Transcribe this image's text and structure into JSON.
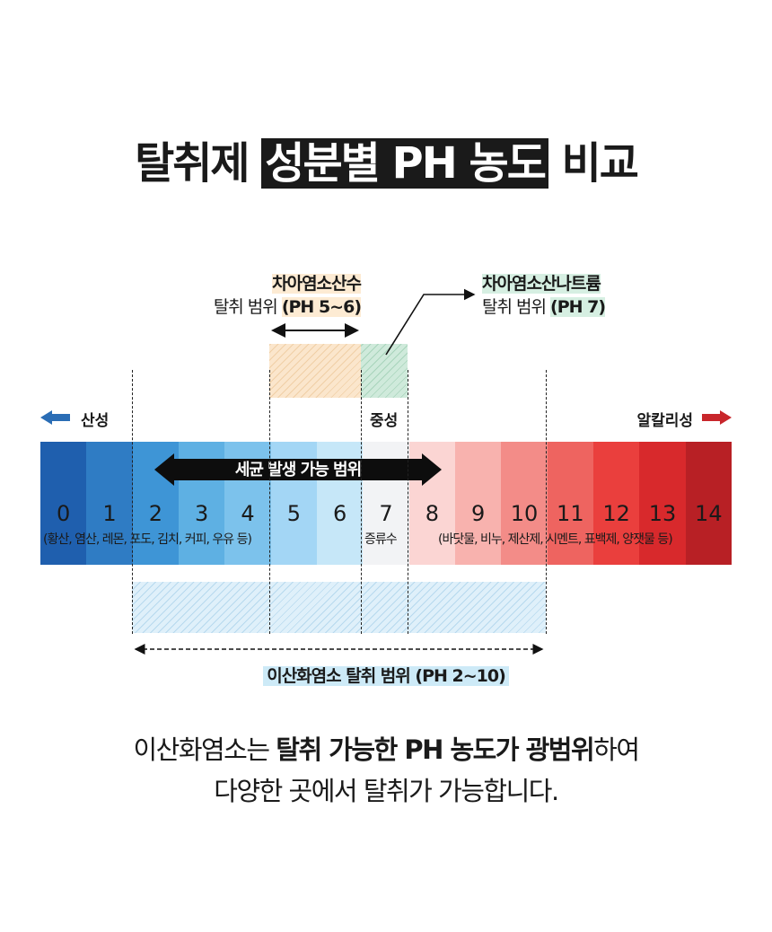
{
  "title": {
    "part1": "탈취제",
    "highlight": "성분별 PH 농도",
    "part2": "비교"
  },
  "hypochlorous": {
    "name": "차아염소산수",
    "range_prefix": "탈취 범위",
    "range": "(PH 5~6)",
    "ph_min": 5,
    "ph_max": 6,
    "color": "#fdebd3"
  },
  "sodium_hypochlorite": {
    "name": "차아염소산나트륨",
    "range_prefix": "탈취 범위",
    "range": "(PH 7)",
    "ph": 7,
    "color": "#d6efe2"
  },
  "scale": {
    "acid_label": "산성",
    "neutral_label": "중성",
    "alkali_label": "알칼리성",
    "acid_arrow_color": "#2a6db5",
    "alkali_arrow_color": "#c8262b",
    "numbers": [
      "0",
      "1",
      "2",
      "3",
      "4",
      "5",
      "6",
      "7",
      "8",
      "9",
      "10",
      "11",
      "12",
      "13",
      "14"
    ],
    "colors": [
      "#1f5fae",
      "#2f7cc4",
      "#3e95d6",
      "#5eb0e3",
      "#7cc2ec",
      "#a3d6f5",
      "#c6e7f8",
      "#f2f3f5",
      "#fbd5d3",
      "#f8b2ae",
      "#f38c88",
      "#ee6460",
      "#ea3f3d",
      "#d8292c",
      "#b82025"
    ],
    "acid_examples": "(황산, 염산, 레몬, 포도, 김치, 커피, 우유 등)",
    "neutral_example": "증류수",
    "alkali_examples": "(바닷물, 비누, 제산제, 시멘트, 표백제, 양잿물 등)"
  },
  "bacteria_range": {
    "label": "세균 발생 가능 범위"
  },
  "chlorine_dioxide": {
    "label": "이산화염소 탈취 범위 (PH 2~10)",
    "ph_min": 2,
    "ph_max": 10,
    "color": "#cdeaf7"
  },
  "footer": {
    "line1_a": "이산화염소는 ",
    "line1_bold": "탈취 가능한 PH 농도가 광범위",
    "line1_b": "하여",
    "line2": "다양한 곳에서 탈취가 가능합니다."
  }
}
